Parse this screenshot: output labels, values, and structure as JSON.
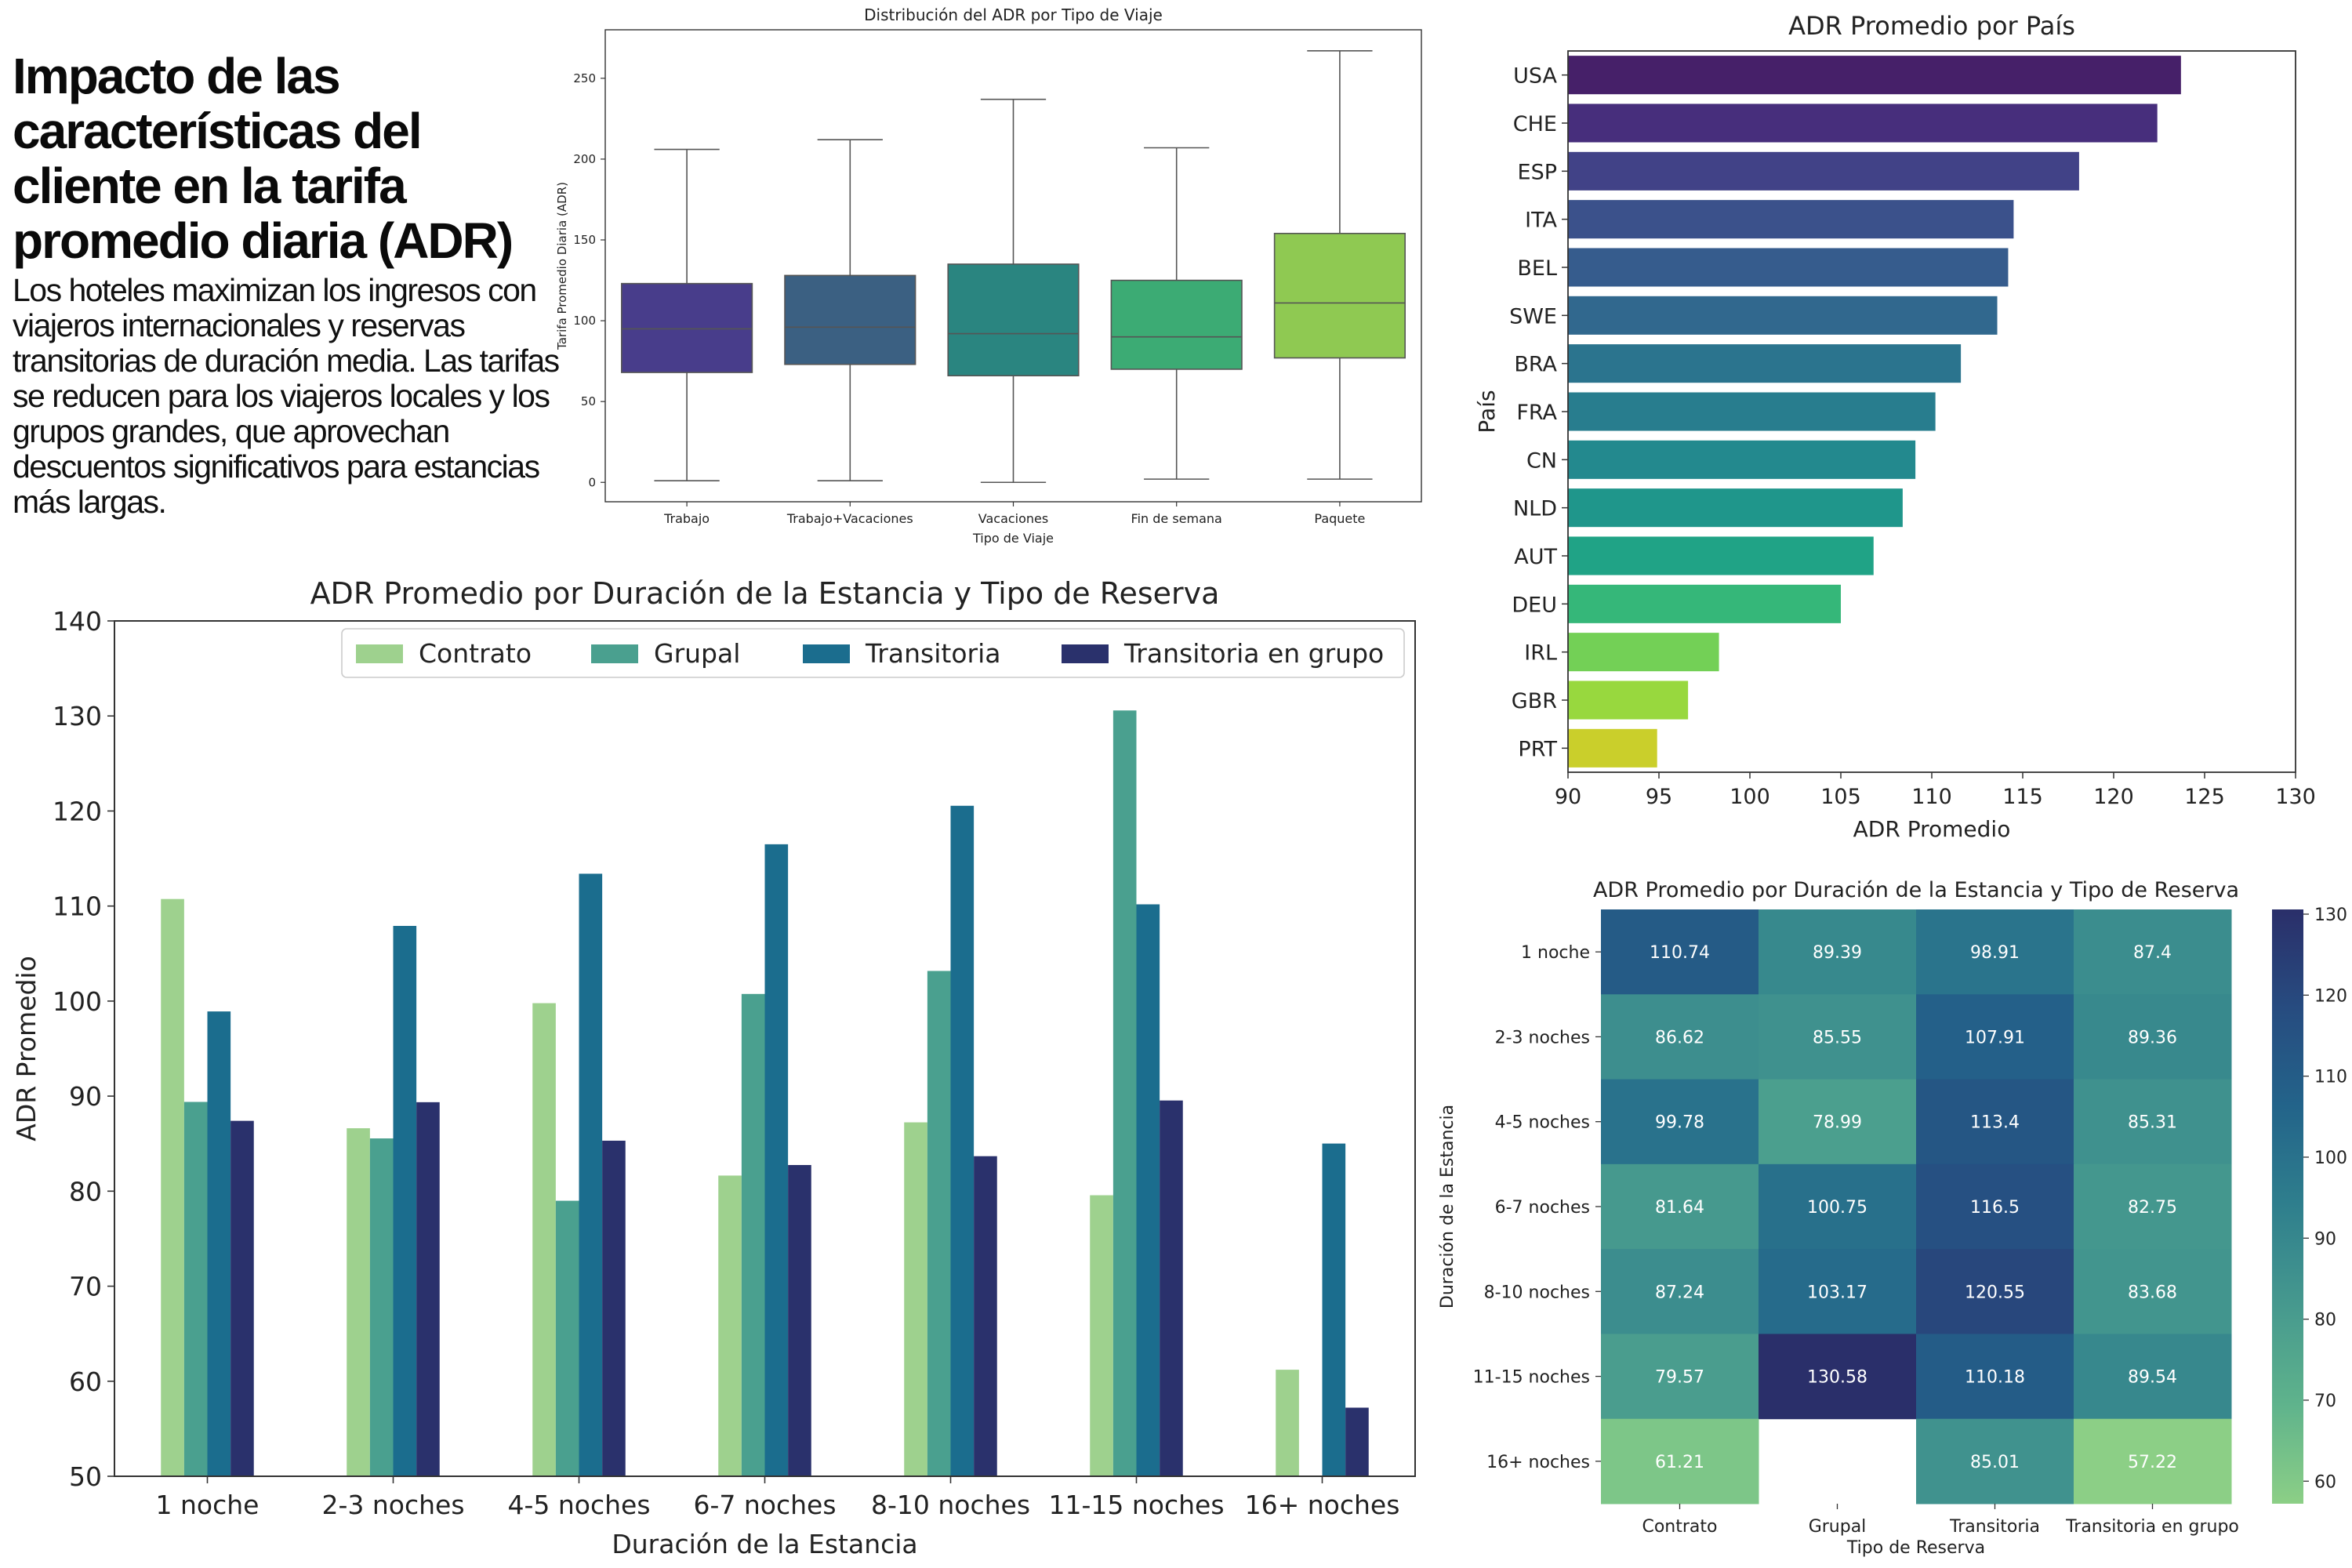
{
  "intro": {
    "title": "Impacto de las características del cliente en la tarifa promedio diaria (ADR)",
    "body": "Los hoteles maximizan los ingresos con viajeros internacionales y reservas transitorias de duración media. Las tarifas se reducen para los viajeros locales y los grupos grandes, que aprovechan descuentos significativos para estancias más largas."
  },
  "chart_data": [
    {
      "type": "box",
      "title": "Distribución del ADR por Tipo de Viaje",
      "xlabel": "Tipo de Viaje",
      "ylabel": "Tarifa Promedio Diaria (ADR)",
      "ylim": [
        -12,
        280
      ],
      "yticks": [
        0,
        50,
        100,
        150,
        200,
        250
      ],
      "categories": [
        "Trabajo",
        "Trabajo+Vacaciones",
        "Vacaciones",
        "Fin de semana",
        "Paquete"
      ],
      "colors": [
        "#483d8b",
        "#3b6082",
        "#2a8580",
        "#3cab74",
        "#8fc952"
      ],
      "boxes": [
        {
          "whisker_low": 1,
          "q1": 68,
          "median": 95,
          "q3": 123,
          "whisker_high": 206
        },
        {
          "whisker_low": 1,
          "q1": 73,
          "median": 96,
          "q3": 128,
          "whisker_high": 212
        },
        {
          "whisker_low": 0,
          "q1": 66,
          "median": 92,
          "q3": 135,
          "whisker_high": 237
        },
        {
          "whisker_low": 2,
          "q1": 70,
          "median": 90,
          "q3": 125,
          "whisker_high": 207
        },
        {
          "whisker_low": 2,
          "q1": 77,
          "median": 111,
          "q3": 154,
          "whisker_high": 267
        }
      ]
    },
    {
      "type": "bar",
      "orientation": "horizontal",
      "title": "ADR Promedio por País",
      "xlabel": "ADR Promedio",
      "ylabel": "País",
      "xlim": [
        90,
        130
      ],
      "xticks": [
        90,
        95,
        100,
        105,
        110,
        115,
        120,
        125,
        130
      ],
      "categories": [
        "USA",
        "CHE",
        "ESP",
        "ITA",
        "BEL",
        "SWE",
        "BRA",
        "FRA",
        "CN",
        "NLD",
        "AUT",
        "DEU",
        "IRL",
        "GBR",
        "PRT"
      ],
      "values": [
        123.7,
        122.4,
        118.1,
        114.5,
        114.2,
        113.6,
        111.6,
        110.2,
        109.1,
        108.4,
        106.8,
        105.0,
        98.3,
        96.6,
        94.9
      ],
      "colors": [
        "#462069",
        "#472e7c",
        "#414287",
        "#3b518b",
        "#365c8d",
        "#31688e",
        "#2b748e",
        "#287d8e",
        "#23898e",
        "#1f968b",
        "#20a386",
        "#35b779",
        "#73d056",
        "#98d83e",
        "#cacf2b"
      ]
    },
    {
      "type": "bar",
      "title": "ADR Promedio por Duración de la Estancia y Tipo de Reserva",
      "xlabel": "Duración de la Estancia",
      "ylabel": "ADR Promedio",
      "ylim": [
        50,
        140
      ],
      "yticks": [
        50,
        60,
        70,
        80,
        90,
        100,
        110,
        120,
        130,
        140
      ],
      "legend_position": "top-right",
      "categories": [
        "1 noche",
        "2-3 noches",
        "4-5 noches",
        "6-7 noches",
        "8-10 noches",
        "11-15 noches",
        "16+ noches"
      ],
      "series": [
        {
          "name": "Contrato",
          "color": "#9ed18e",
          "values": [
            110.74,
            86.62,
            99.78,
            81.64,
            87.24,
            79.57,
            61.21
          ]
        },
        {
          "name": "Grupal",
          "color": "#4aa08f",
          "values": [
            89.39,
            85.55,
            78.99,
            100.75,
            103.17,
            130.58,
            null
          ]
        },
        {
          "name": "Transitoria",
          "color": "#1b6d8e",
          "values": [
            98.91,
            107.91,
            113.4,
            116.5,
            120.55,
            110.18,
            85.01
          ]
        },
        {
          "name": "Transitoria en grupo",
          "color": "#2a316c",
          "values": [
            87.4,
            89.36,
            85.31,
            82.75,
            83.68,
            89.54,
            57.22
          ]
        }
      ]
    },
    {
      "type": "heatmap",
      "title": "ADR Promedio por Duración de la Estancia y Tipo de Reserva",
      "xlabel": "Tipo de Reserva",
      "ylabel": "Duración de la Estancia",
      "columns": [
        "Contrato",
        "Grupal",
        "Transitoria",
        "Transitoria en grupo"
      ],
      "rows": [
        "1 noche",
        "2-3 noches",
        "4-5 noches",
        "6-7 noches",
        "8-10 noches",
        "11-15 noches",
        "16+ noches"
      ],
      "values": [
        [
          110.74,
          89.39,
          98.91,
          87.4
        ],
        [
          86.62,
          85.55,
          107.91,
          89.36
        ],
        [
          99.78,
          78.99,
          113.4,
          85.31
        ],
        [
          81.64,
          100.75,
          116.5,
          82.75
        ],
        [
          87.24,
          103.17,
          120.55,
          83.68
        ],
        [
          79.57,
          130.58,
          110.18,
          89.54
        ],
        [
          61.21,
          null,
          85.01,
          57.22
        ]
      ],
      "colorbar_range": [
        57.22,
        130.58
      ],
      "colorbar_ticks": [
        60,
        70,
        80,
        90,
        100,
        110,
        120,
        130
      ],
      "colormap": [
        "#8ccf86",
        "#5fb38c",
        "#46998e",
        "#2f7f8d",
        "#23648a",
        "#274c80",
        "#2a2f6a"
      ]
    }
  ]
}
